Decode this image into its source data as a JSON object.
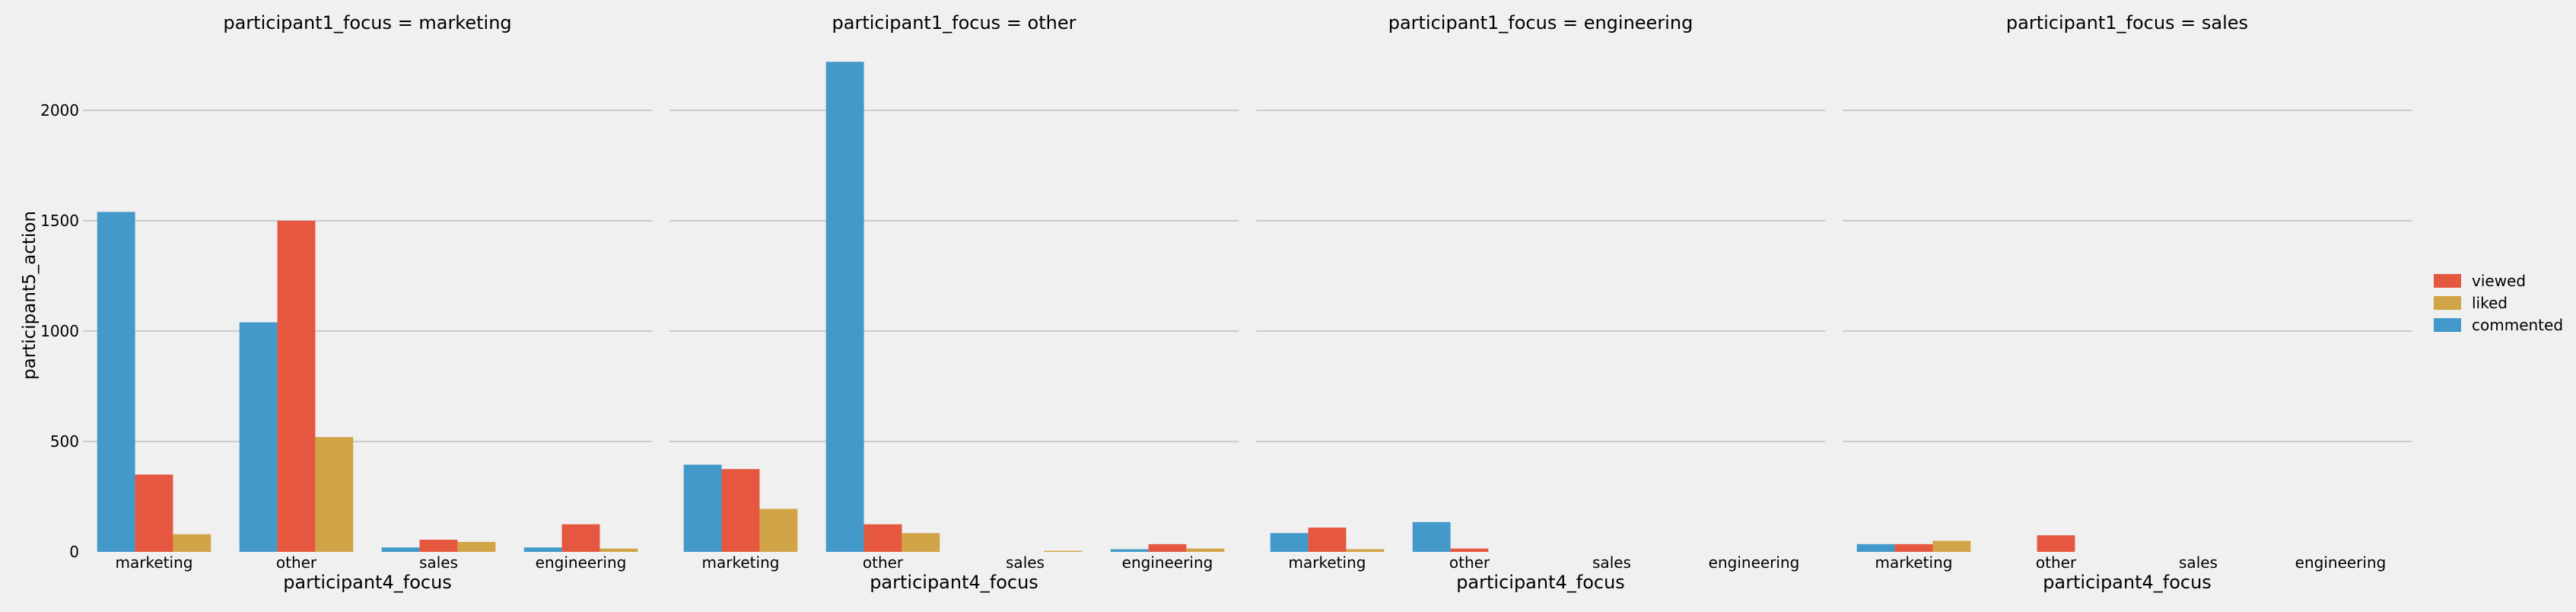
{
  "chart_data": {
    "type": "bar",
    "ylabel": "participant5_action",
    "xlabel": "participant4_focus",
    "ylim": [
      0,
      2300
    ],
    "yticks": [
      0,
      500,
      1000,
      1500,
      2000
    ],
    "categories": [
      "marketing",
      "other",
      "sales",
      "engineering"
    ],
    "hue_order": [
      "commented",
      "viewed",
      "liked"
    ],
    "colors": {
      "viewed": "#e5573f",
      "liked": "#d1a447",
      "commented": "#4399c9"
    },
    "legend": {
      "placement": "right",
      "entries": [
        "viewed",
        "liked",
        "commented"
      ]
    },
    "grid": true,
    "panels": [
      {
        "title": "participant1_focus = marketing",
        "series": [
          {
            "name": "commented",
            "values": [
              1540,
              1040,
              20,
              20
            ]
          },
          {
            "name": "viewed",
            "values": [
              350,
              1500,
              55,
              125
            ]
          },
          {
            "name": "liked",
            "values": [
              80,
              520,
              45,
              15
            ]
          }
        ]
      },
      {
        "title": "participant1_focus = other",
        "series": [
          {
            "name": "commented",
            "values": [
              395,
              2220,
              0,
              12
            ]
          },
          {
            "name": "viewed",
            "values": [
              375,
              125,
              0,
              35
            ]
          },
          {
            "name": "liked",
            "values": [
              195,
              85,
              5,
              15
            ]
          }
        ]
      },
      {
        "title": "participant1_focus = engineering",
        "series": [
          {
            "name": "commented",
            "values": [
              85,
              135,
              0,
              0
            ]
          },
          {
            "name": "viewed",
            "values": [
              110,
              15,
              0,
              0
            ]
          },
          {
            "name": "liked",
            "values": [
              12,
              0,
              0,
              0
            ]
          }
        ]
      },
      {
        "title": "participant1_focus = sales",
        "series": [
          {
            "name": "commented",
            "values": [
              35,
              0,
              0,
              0
            ]
          },
          {
            "name": "viewed",
            "values": [
              35,
              75,
              0,
              0
            ]
          },
          {
            "name": "liked",
            "values": [
              50,
              0,
              0,
              0
            ]
          }
        ]
      }
    ]
  }
}
